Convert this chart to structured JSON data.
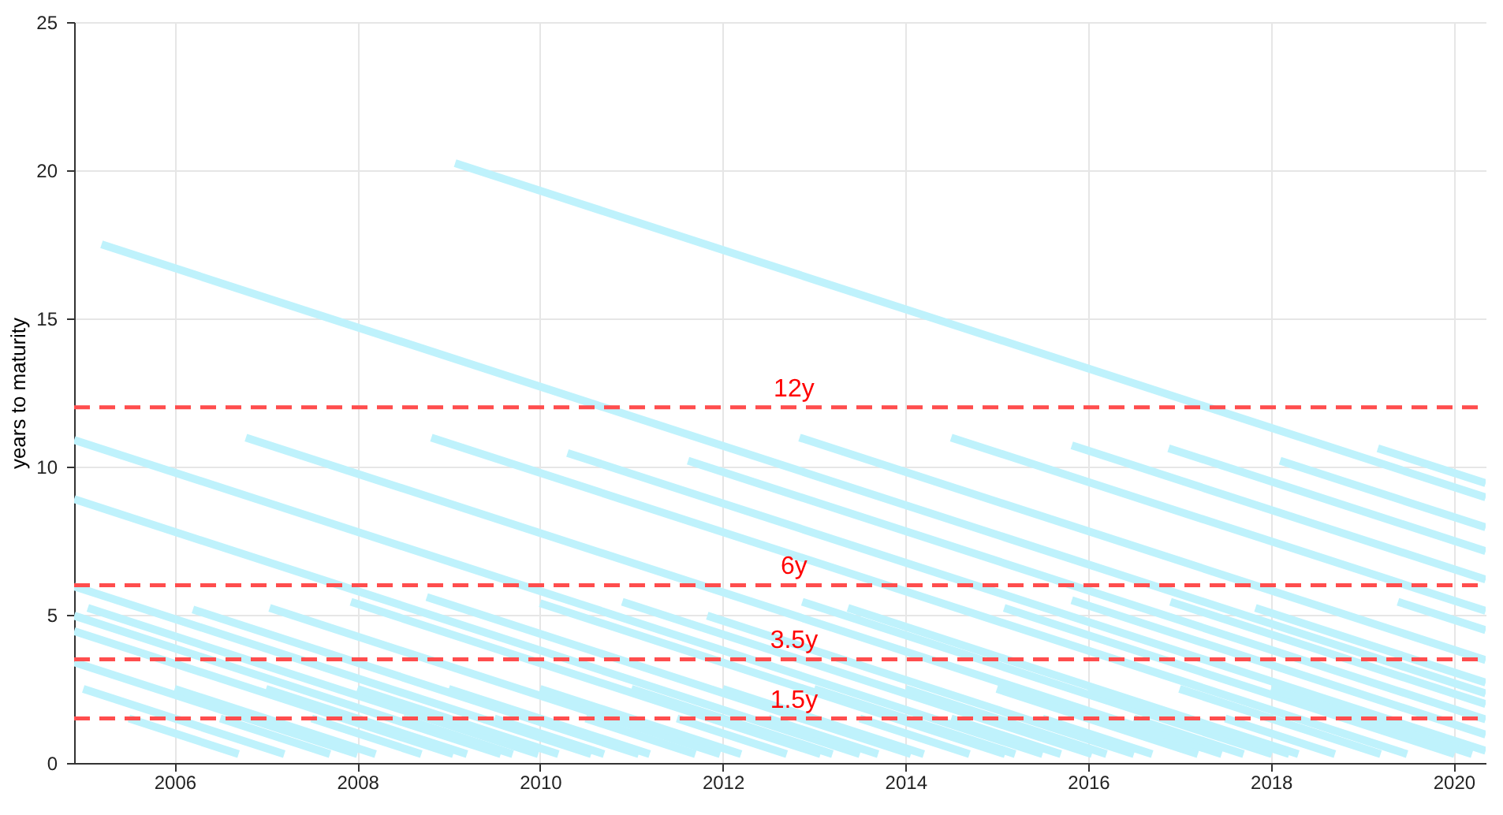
{
  "chart_data": {
    "type": "line",
    "ylabel": "years to maturity",
    "xlim": [
      2004.9,
      2020.35
    ],
    "ylim": [
      0,
      25
    ],
    "xticks": [
      2006,
      2008,
      2010,
      2012,
      2014,
      2016,
      2018,
      2020
    ],
    "yticks": [
      0,
      5,
      10,
      15,
      20,
      25
    ],
    "grid": true,
    "ref_lines": [
      {
        "axis": "y",
        "value": 12,
        "label": "12y",
        "color": "#ff4d4d",
        "line_style": "dashed"
      },
      {
        "axis": "y",
        "value": 6,
        "label": "6y",
        "color": "#ff4d4d",
        "line_style": "dashed"
      },
      {
        "axis": "y",
        "value": 3.5,
        "label": "3.5y",
        "color": "#ff4d4d",
        "line_style": "dashed"
      },
      {
        "axis": "y",
        "value": 1.5,
        "label": "1.5y",
        "color": "#ff4d4d",
        "line_style": "dashed"
      }
    ],
    "series": [
      {
        "color": "#bff2fc",
        "x": [
          2009.07,
          2020.35
        ],
        "values": [
          20.24,
          8.96
        ]
      },
      {
        "color": "#bff2fc",
        "x": [
          2005.2,
          2020.35
        ],
        "values": [
          17.5,
          2.35
        ]
      },
      {
        "color": "#bff2fc",
        "x": [
          2004.9,
          2015.5
        ],
        "values": [
          10.9,
          0.3
        ]
      },
      {
        "color": "#bff2fc",
        "x": [
          2004.9,
          2013.5
        ],
        "values": [
          8.9,
          0.3
        ]
      },
      {
        "color": "#bff2fc",
        "x": [
          2006.78,
          2017.46
        ],
        "values": [
          10.98,
          0.3
        ]
      },
      {
        "color": "#bff2fc",
        "x": [
          2008.81,
          2019.49
        ],
        "values": [
          10.98,
          0.3
        ]
      },
      {
        "color": "#bff2fc",
        "x": [
          2010.3,
          2020.35
        ],
        "values": [
          10.46,
          0.41
        ]
      },
      {
        "color": "#bff2fc",
        "x": [
          2011.62,
          2020.35
        ],
        "values": [
          10.2,
          1.47
        ]
      },
      {
        "color": "#bff2fc",
        "x": [
          2012.84,
          2020.35
        ],
        "values": [
          10.98,
          3.47
        ]
      },
      {
        "color": "#bff2fc",
        "x": [
          2014.5,
          2020.35
        ],
        "values": [
          10.98,
          5.13
        ]
      },
      {
        "color": "#bff2fc",
        "x": [
          2015.82,
          2020.35
        ],
        "values": [
          10.72,
          6.19
        ]
      },
      {
        "color": "#bff2fc",
        "x": [
          2016.88,
          2020.35
        ],
        "values": [
          10.62,
          7.15
        ]
      },
      {
        "color": "#bff2fc",
        "x": [
          2018.1,
          2020.35
        ],
        "values": [
          10.2,
          7.95
        ]
      },
      {
        "color": "#bff2fc",
        "x": [
          2019.17,
          2020.35
        ],
        "values": [
          10.62,
          9.44
        ]
      },
      {
        "color": "#bff2fc",
        "x": [
          2004.9,
          2010.56
        ],
        "values": [
          5.96,
          0.3
        ]
      },
      {
        "color": "#bff2fc",
        "x": [
          2004.9,
          2009.57
        ],
        "values": [
          4.97,
          0.3
        ]
      },
      {
        "color": "#bff2fc",
        "x": [
          2004.9,
          2009.05
        ],
        "values": [
          4.45,
          0.3
        ]
      },
      {
        "color": "#bff2fc",
        "x": [
          2004.9,
          2008.0
        ],
        "values": [
          3.4,
          0.3
        ]
      },
      {
        "color": "#bff2fc",
        "x": [
          2005.05,
          2009.98
        ],
        "values": [
          5.23,
          0.3
        ]
      },
      {
        "color": "#bff2fc",
        "x": [
          2006.2,
          2011.08
        ],
        "values": [
          5.18,
          0.3
        ]
      },
      {
        "color": "#bff2fc",
        "x": [
          2007.04,
          2011.97
        ],
        "values": [
          5.23,
          0.3
        ]
      },
      {
        "color": "#bff2fc",
        "x": [
          2007.93,
          2013.07
        ],
        "values": [
          5.44,
          0.3
        ]
      },
      {
        "color": "#bff2fc",
        "x": [
          2008.76,
          2014.06
        ],
        "values": [
          5.6,
          0.3
        ]
      },
      {
        "color": "#bff2fc",
        "x": [
          2010.0,
          2015.09
        ],
        "values": [
          5.39,
          0.3
        ]
      },
      {
        "color": "#bff2fc",
        "x": [
          2010.9,
          2016.04
        ],
        "values": [
          5.44,
          0.3
        ]
      },
      {
        "color": "#bff2fc",
        "x": [
          2011.83,
          2016.5
        ],
        "values": [
          4.97,
          0.3
        ]
      },
      {
        "color": "#bff2fc",
        "x": [
          2012.87,
          2018.01
        ],
        "values": [
          5.44,
          0.3
        ]
      },
      {
        "color": "#bff2fc",
        "x": [
          2013.37,
          2018.3
        ],
        "values": [
          5.23,
          0.3
        ]
      },
      {
        "color": "#bff2fc",
        "x": [
          2015.08,
          2020.01
        ],
        "values": [
          5.23,
          0.3
        ]
      },
      {
        "color": "#bff2fc",
        "x": [
          2015.82,
          2020.35
        ],
        "values": [
          5.49,
          0.96
        ]
      },
      {
        "color": "#bff2fc",
        "x": [
          2016.9,
          2020.35
        ],
        "values": [
          5.44,
          1.99
        ]
      },
      {
        "color": "#bff2fc",
        "x": [
          2017.83,
          2020.35
        ],
        "values": [
          5.23,
          2.71
        ]
      },
      {
        "color": "#bff2fc",
        "x": [
          2019.39,
          2020.35
        ],
        "values": [
          5.44,
          4.48
        ]
      },
      {
        "color": "#bff2fc",
        "x": [
          2005.0,
          2007.2
        ],
        "values": [
          2.5,
          0.3
        ]
      },
      {
        "color": "#bff2fc",
        "x": [
          2005.5,
          2006.7
        ],
        "values": [
          1.5,
          0.3
        ]
      },
      {
        "color": "#bff2fc",
        "x": [
          2006.0,
          2008.2
        ],
        "values": [
          2.5,
          0.3
        ]
      },
      {
        "color": "#bff2fc",
        "x": [
          2006.5,
          2007.7
        ],
        "values": [
          1.5,
          0.3
        ]
      },
      {
        "color": "#bff2fc",
        "x": [
          2007.0,
          2009.2
        ],
        "values": [
          2.5,
          0.3
        ]
      },
      {
        "color": "#bff2fc",
        "x": [
          2007.5,
          2008.7
        ],
        "values": [
          1.5,
          0.3
        ]
      },
      {
        "color": "#bff2fc",
        "x": [
          2008.0,
          2010.2
        ],
        "values": [
          2.5,
          0.3
        ]
      },
      {
        "color": "#bff2fc",
        "x": [
          2008.5,
          2009.7
        ],
        "values": [
          1.5,
          0.3
        ]
      },
      {
        "color": "#bff2fc",
        "x": [
          2009.0,
          2011.2
        ],
        "values": [
          2.5,
          0.3
        ]
      },
      {
        "color": "#bff2fc",
        "x": [
          2009.5,
          2010.7
        ],
        "values": [
          1.5,
          0.3
        ]
      },
      {
        "color": "#bff2fc",
        "x": [
          2010.0,
          2012.2
        ],
        "values": [
          2.5,
          0.3
        ]
      },
      {
        "color": "#bff2fc",
        "x": [
          2010.5,
          2011.7
        ],
        "values": [
          1.5,
          0.3
        ]
      },
      {
        "color": "#bff2fc",
        "x": [
          2011.0,
          2013.2
        ],
        "values": [
          2.5,
          0.3
        ]
      },
      {
        "color": "#bff2fc",
        "x": [
          2011.5,
          2012.7
        ],
        "values": [
          1.5,
          0.3
        ]
      },
      {
        "color": "#bff2fc",
        "x": [
          2012.0,
          2014.2
        ],
        "values": [
          2.5,
          0.3
        ]
      },
      {
        "color": "#bff2fc",
        "x": [
          2012.5,
          2013.7
        ],
        "values": [
          1.5,
          0.3
        ]
      },
      {
        "color": "#bff2fc",
        "x": [
          2013.0,
          2015.2
        ],
        "values": [
          2.5,
          0.3
        ]
      },
      {
        "color": "#bff2fc",
        "x": [
          2013.5,
          2014.7
        ],
        "values": [
          1.5,
          0.3
        ]
      },
      {
        "color": "#bff2fc",
        "x": [
          2014.0,
          2016.2
        ],
        "values": [
          2.5,
          0.3
        ]
      },
      {
        "color": "#bff2fc",
        "x": [
          2014.5,
          2015.7
        ],
        "values": [
          1.5,
          0.3
        ]
      },
      {
        "color": "#bff2fc",
        "x": [
          2015.0,
          2017.2
        ],
        "values": [
          2.5,
          0.3
        ]
      },
      {
        "color": "#bff2fc",
        "x": [
          2015.5,
          2016.7
        ],
        "values": [
          1.5,
          0.3
        ]
      },
      {
        "color": "#bff2fc",
        "x": [
          2016.0,
          2018.2
        ],
        "values": [
          2.5,
          0.3
        ]
      },
      {
        "color": "#bff2fc",
        "x": [
          2016.5,
          2017.7
        ],
        "values": [
          1.5,
          0.3
        ]
      },
      {
        "color": "#bff2fc",
        "x": [
          2017.0,
          2019.2
        ],
        "values": [
          2.5,
          0.3
        ]
      },
      {
        "color": "#bff2fc",
        "x": [
          2017.5,
          2018.7
        ],
        "values": [
          1.5,
          0.3
        ]
      },
      {
        "color": "#bff2fc",
        "x": [
          2018.0,
          2020.2
        ],
        "values": [
          2.5,
          0.3
        ]
      }
    ]
  }
}
